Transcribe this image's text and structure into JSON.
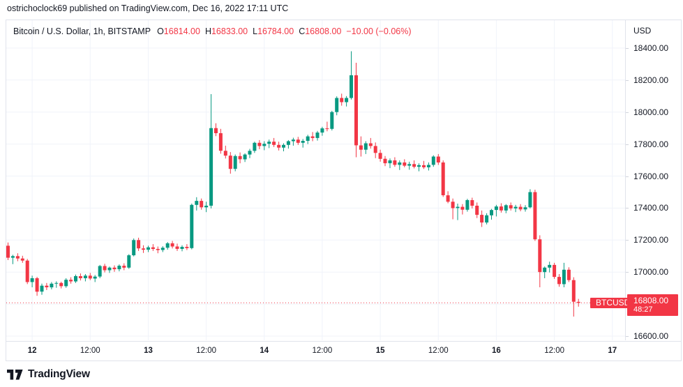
{
  "attribution": "ostrichoclock69 published on TradingView.com, Dec 16, 2022 17:11 UTC",
  "header": {
    "symbol_title": "Bitcoin / U.S. Dollar, 1h, BITSTAMP",
    "ohlc": [
      {
        "label": "O",
        "value": "16814.00"
      },
      {
        "label": "H",
        "value": "16833.00"
      },
      {
        "label": "L",
        "value": "16784.00"
      },
      {
        "label": "C",
        "value": "16808.00"
      }
    ],
    "change": "−10.00 (−0.06%)"
  },
  "plot": {
    "series_tag": "BTCUSD"
  },
  "price_axis": {
    "unit": "USD",
    "ticks": [
      "18400.00",
      "18200.00",
      "18000.00",
      "17800.00",
      "17600.00",
      "17400.00",
      "17200.00",
      "17000.00",
      "16600.00"
    ],
    "tag": {
      "price": "16808.00",
      "countdown": "48:27"
    }
  },
  "time_axis": {
    "ticks": [
      {
        "label": "12",
        "index": 5,
        "bold": true
      },
      {
        "label": "12:00",
        "index": 17,
        "bold": false
      },
      {
        "label": "13",
        "index": 29,
        "bold": true
      },
      {
        "label": "12:00",
        "index": 41,
        "bold": false
      },
      {
        "label": "14",
        "index": 53,
        "bold": true
      },
      {
        "label": "12:00",
        "index": 65,
        "bold": false
      },
      {
        "label": "15",
        "index": 77,
        "bold": true
      },
      {
        "label": "12:00",
        "index": 89,
        "bold": false
      },
      {
        "label": "16",
        "index": 101,
        "bold": true
      },
      {
        "label": "12:00",
        "index": 113,
        "bold": false
      },
      {
        "label": "17",
        "index": 125,
        "bold": true
      }
    ]
  },
  "footer": {
    "brand": "TradingView"
  },
  "colors": {
    "up": "#089981",
    "down": "#f23645",
    "grid": "#f0f3fa",
    "border": "#e0e3eb",
    "text": "#131722",
    "tag_bg": "#f23645",
    "tag_text": "#ffffff"
  },
  "chart_data": {
    "type": "candlestick",
    "title": "Bitcoin / U.S. Dollar",
    "symbol": "BTCUSD",
    "exchange": "BITSTAMP",
    "interval": "1h",
    "quote_currency": "USD",
    "x_start": "2022-12-11 19:00 UTC",
    "x_step_hours": 1,
    "ylim": [
      16574,
      18574
    ],
    "y_ticks": [
      16600,
      16800,
      17000,
      17200,
      17400,
      17600,
      17800,
      18000,
      18200,
      18400
    ],
    "grid": true,
    "current": {
      "open": 16814,
      "high": 16833,
      "low": 16784,
      "close": 16808,
      "change": -10.0,
      "change_pct": -0.06,
      "countdown": "48:27"
    },
    "candles": [
      [
        17165,
        17185,
        17075,
        17090
      ],
      [
        17090,
        17108,
        17050,
        17100
      ],
      [
        17100,
        17118,
        17068,
        17085
      ],
      [
        17085,
        17102,
        17058,
        17072
      ],
      [
        17072,
        17082,
        16925,
        16938
      ],
      [
        16938,
        16978,
        16905,
        16962
      ],
      [
        16962,
        16970,
        16852,
        16878
      ],
      [
        16878,
        16928,
        16858,
        16915
      ],
      [
        16915,
        16932,
        16888,
        16905
      ],
      [
        16905,
        16938,
        16892,
        16928
      ],
      [
        16928,
        16942,
        16902,
        16932
      ],
      [
        16932,
        16940,
        16898,
        16912
      ],
      [
        16912,
        16962,
        16902,
        16952
      ],
      [
        16952,
        16968,
        16928,
        16942
      ],
      [
        16942,
        16985,
        16932,
        16975
      ],
      [
        16975,
        16992,
        16948,
        16962
      ],
      [
        16962,
        16988,
        16942,
        16978
      ],
      [
        16978,
        16995,
        16950,
        16960
      ],
      [
        16960,
        16982,
        16938,
        16972
      ],
      [
        16972,
        17045,
        16962,
        17038
      ],
      [
        17038,
        17052,
        16998,
        17012
      ],
      [
        17012,
        17035,
        16995,
        17028
      ],
      [
        17028,
        17042,
        17002,
        17018
      ],
      [
        17018,
        17048,
        17005,
        17040
      ],
      [
        17040,
        17055,
        17012,
        17028
      ],
      [
        17028,
        17112,
        17020,
        17105
      ],
      [
        17105,
        17210,
        17098,
        17200
      ],
      [
        17200,
        17215,
        17132,
        17148
      ],
      [
        17148,
        17168,
        17120,
        17140
      ],
      [
        17140,
        17165,
        17125,
        17155
      ],
      [
        17155,
        17175,
        17132,
        17145
      ],
      [
        17145,
        17160,
        17118,
        17138
      ],
      [
        17138,
        17162,
        17125,
        17152
      ],
      [
        17152,
        17188,
        17140,
        17180
      ],
      [
        17180,
        17195,
        17148,
        17160
      ],
      [
        17160,
        17178,
        17132,
        17145
      ],
      [
        17145,
        17168,
        17130,
        17158
      ],
      [
        17158,
        17175,
        17138,
        17150
      ],
      [
        17150,
        17428,
        17142,
        17420
      ],
      [
        17420,
        17468,
        17385,
        17445
      ],
      [
        17445,
        17460,
        17390,
        17405
      ],
      [
        17405,
        17440,
        17375,
        17415
      ],
      [
        17415,
        18112,
        17398,
        17900
      ],
      [
        17900,
        17930,
        17850,
        17868
      ],
      [
        17868,
        17895,
        17740,
        17758
      ],
      [
        17758,
        17790,
        17710,
        17728
      ],
      [
        17728,
        17750,
        17615,
        17645
      ],
      [
        17645,
        17735,
        17630,
        17725
      ],
      [
        17725,
        17748,
        17680,
        17705
      ],
      [
        17705,
        17742,
        17688,
        17735
      ],
      [
        17735,
        17770,
        17712,
        17758
      ],
      [
        17758,
        17815,
        17745,
        17808
      ],
      [
        17808,
        17825,
        17768,
        17788
      ],
      [
        17788,
        17818,
        17762,
        17802
      ],
      [
        17802,
        17828,
        17775,
        17815
      ],
      [
        17815,
        17838,
        17782,
        17795
      ],
      [
        17795,
        17815,
        17760,
        17778
      ],
      [
        17778,
        17805,
        17755,
        17795
      ],
      [
        17795,
        17825,
        17772,
        17818
      ],
      [
        17818,
        17840,
        17790,
        17828
      ],
      [
        17828,
        17845,
        17795,
        17808
      ],
      [
        17808,
        17832,
        17778,
        17820
      ],
      [
        17820,
        17858,
        17800,
        17848
      ],
      [
        17848,
        17875,
        17818,
        17838
      ],
      [
        17838,
        17882,
        17822,
        17872
      ],
      [
        17872,
        17908,
        17852,
        17898
      ],
      [
        17898,
        17940,
        17880,
        17895
      ],
      [
        17895,
        18008,
        17885,
        18000
      ],
      [
        18000,
        18098,
        17980,
        18088
      ],
      [
        18088,
        18115,
        18040,
        18062
      ],
      [
        18062,
        18100,
        18035,
        18088
      ],
      [
        18088,
        18380,
        18078,
        18230
      ],
      [
        18230,
        18308,
        17718,
        17792
      ],
      [
        17792,
        17848,
        17722,
        17765
      ],
      [
        17765,
        17818,
        17738,
        17805
      ],
      [
        17805,
        17838,
        17772,
        17788
      ],
      [
        17788,
        17810,
        17712,
        17745
      ],
      [
        17745,
        17765,
        17690,
        17708
      ],
      [
        17708,
        17725,
        17662,
        17680
      ],
      [
        17680,
        17710,
        17650,
        17698
      ],
      [
        17698,
        17718,
        17658,
        17670
      ],
      [
        17670,
        17698,
        17638,
        17685
      ],
      [
        17685,
        17705,
        17655,
        17665
      ],
      [
        17665,
        17690,
        17640,
        17675
      ],
      [
        17675,
        17698,
        17648,
        17658
      ],
      [
        17658,
        17680,
        17630,
        17668
      ],
      [
        17668,
        17695,
        17645,
        17655
      ],
      [
        17655,
        17685,
        17635,
        17670
      ],
      [
        17670,
        17730,
        17658,
        17722
      ],
      [
        17722,
        17738,
        17670,
        17685
      ],
      [
        17685,
        17698,
        17470,
        17480
      ],
      [
        17480,
        17505,
        17430,
        17440
      ],
      [
        17440,
        17460,
        17330,
        17400
      ],
      [
        17400,
        17428,
        17325,
        17408
      ],
      [
        17408,
        17425,
        17360,
        17390
      ],
      [
        17390,
        17458,
        17378,
        17450
      ],
      [
        17450,
        17465,
        17398,
        17415
      ],
      [
        17415,
        17435,
        17338,
        17358
      ],
      [
        17358,
        17385,
        17282,
        17310
      ],
      [
        17310,
        17368,
        17298,
        17355
      ],
      [
        17355,
        17395,
        17328,
        17388
      ],
      [
        17388,
        17420,
        17348,
        17410
      ],
      [
        17410,
        17430,
        17372,
        17385
      ],
      [
        17385,
        17425,
        17368,
        17418
      ],
      [
        17418,
        17435,
        17385,
        17398
      ],
      [
        17398,
        17420,
        17375,
        17408
      ],
      [
        17408,
        17425,
        17380,
        17392
      ],
      [
        17392,
        17418,
        17378,
        17405
      ],
      [
        17405,
        17518,
        17398,
        17500
      ],
      [
        17500,
        17515,
        17195,
        17205
      ],
      [
        17205,
        17230,
        16905,
        17000
      ],
      [
        17000,
        17035,
        16962,
        17028
      ],
      [
        17028,
        17065,
        16998,
        17045
      ],
      [
        17045,
        17058,
        16958,
        16970
      ],
      [
        16970,
        16988,
        16908,
        16925
      ],
      [
        16925,
        17058,
        16905,
        17015
      ],
      [
        17015,
        17030,
        16938,
        16950
      ],
      [
        16950,
        16968,
        16722,
        16815
      ],
      [
        16814,
        16833,
        16784,
        16808
      ]
    ]
  }
}
